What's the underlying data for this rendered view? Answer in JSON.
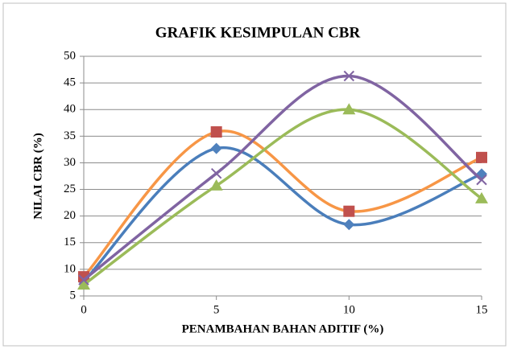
{
  "chart_data": {
    "type": "line",
    "title": "GRAFIK KESIMPULAN CBR",
    "x_label": "PENAMBAHAN BAHAN ADITIF (%)",
    "y_label": "NILAI CBR (%)",
    "x": [
      0,
      5,
      10,
      15
    ],
    "series": [
      {
        "color": "#4a7ebb",
        "marker_color": "#4f81bd",
        "marker": "diamond",
        "values": [
          7.7,
          32.7,
          18.4,
          27.9
        ]
      },
      {
        "color": "#f79646",
        "marker_color": "#c0504d",
        "marker": "square",
        "values": [
          8.6,
          35.8,
          20.9,
          31.0
        ]
      },
      {
        "color": "#9bbb59",
        "marker_color": "#9bbb59",
        "marker": "triangle",
        "values": [
          7.1,
          25.7,
          40.0,
          23.3
        ]
      },
      {
        "color": "#8064a2",
        "marker_color": "#8064a2",
        "marker": "x",
        "values": [
          8.0,
          28.0,
          46.3,
          26.8
        ]
      }
    ],
    "smooth": true,
    "xlim": [
      0,
      15
    ],
    "xticks": [
      0,
      5,
      10,
      15
    ],
    "ylim": [
      5,
      50
    ],
    "yticks": [
      5,
      10,
      15,
      20,
      25,
      30,
      35,
      40,
      45,
      50
    ],
    "grid": true
  }
}
